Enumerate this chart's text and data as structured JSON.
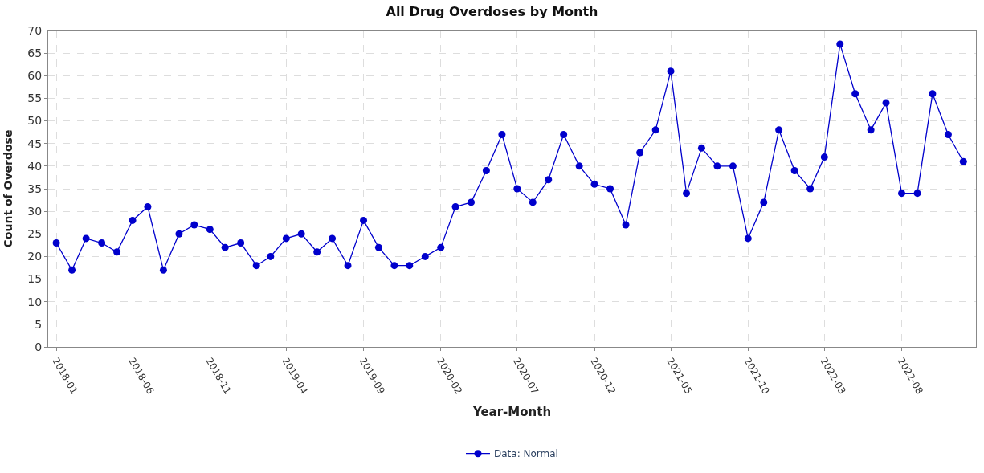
{
  "chart_data": {
    "type": "line",
    "title": "All Drug Overdoses by Month",
    "xlabel": "Year-Month",
    "ylabel": "Count of Overdose",
    "x": [
      "2018-01",
      "2018-02",
      "2018-03",
      "2018-04",
      "2018-05",
      "2018-06",
      "2018-07",
      "2018-08",
      "2018-09",
      "2018-10",
      "2018-11",
      "2018-12",
      "2019-01",
      "2019-02",
      "2019-03",
      "2019-04",
      "2019-05",
      "2019-06",
      "2019-07",
      "2019-08",
      "2019-09",
      "2019-10",
      "2019-11",
      "2019-12",
      "2020-01",
      "2020-02",
      "2020-03",
      "2020-04",
      "2020-05",
      "2020-06",
      "2020-07",
      "2020-08",
      "2020-09",
      "2020-10",
      "2020-11",
      "2020-12",
      "2021-01",
      "2021-02",
      "2021-03",
      "2021-04",
      "2021-05",
      "2021-06",
      "2021-07",
      "2021-08",
      "2021-09",
      "2021-10",
      "2021-11",
      "2021-12",
      "2022-01",
      "2022-02",
      "2022-03",
      "2022-04",
      "2022-05",
      "2022-06",
      "2022-07",
      "2022-08",
      "2022-09",
      "2022-10",
      "2022-11",
      "2022-12"
    ],
    "series": [
      {
        "name": "Data: Normal",
        "color": "#0000cc",
        "values": [
          23,
          17,
          24,
          23,
          21,
          28,
          31,
          17,
          25,
          27,
          26,
          22,
          23,
          18,
          20,
          24,
          25,
          21,
          24,
          18,
          28,
          22,
          18,
          18,
          20,
          22,
          31,
          32,
          39,
          47,
          35,
          32,
          37,
          47,
          40,
          36,
          35,
          27,
          43,
          48,
          61,
          34,
          44,
          40,
          40,
          24,
          32,
          48,
          39,
          35,
          42,
          67,
          56,
          48,
          54,
          34,
          34,
          56,
          47,
          41
        ]
      }
    ],
    "xlim": [
      "2017-12-16",
      "2022-12-26"
    ],
    "xticks": [
      {
        "value": "2018-01",
        "label": "2018-01"
      },
      {
        "value": "2018-06",
        "label": "2018-06"
      },
      {
        "value": "2018-11",
        "label": "2018-11"
      },
      {
        "value": "2019-04",
        "label": "2019-04"
      },
      {
        "value": "2019-09",
        "label": "2019-09"
      },
      {
        "value": "2020-02",
        "label": "2020-02"
      },
      {
        "value": "2020-07",
        "label": "2020-07"
      },
      {
        "value": "2020-12",
        "label": "2020-12"
      },
      {
        "value": "2021-05",
        "label": "2021-05"
      },
      {
        "value": "2021-10",
        "label": "2021-10"
      },
      {
        "value": "2022-03",
        "label": "2022-03"
      },
      {
        "value": "2022-08",
        "label": "2022-08"
      }
    ],
    "ylim": [
      0,
      70
    ],
    "yticks": [
      0,
      5,
      10,
      15,
      20,
      25,
      30,
      35,
      40,
      45,
      50,
      55,
      60,
      65,
      70
    ],
    "grid": true,
    "legend": "bottom",
    "marker": "circle",
    "line_style": "solid"
  }
}
